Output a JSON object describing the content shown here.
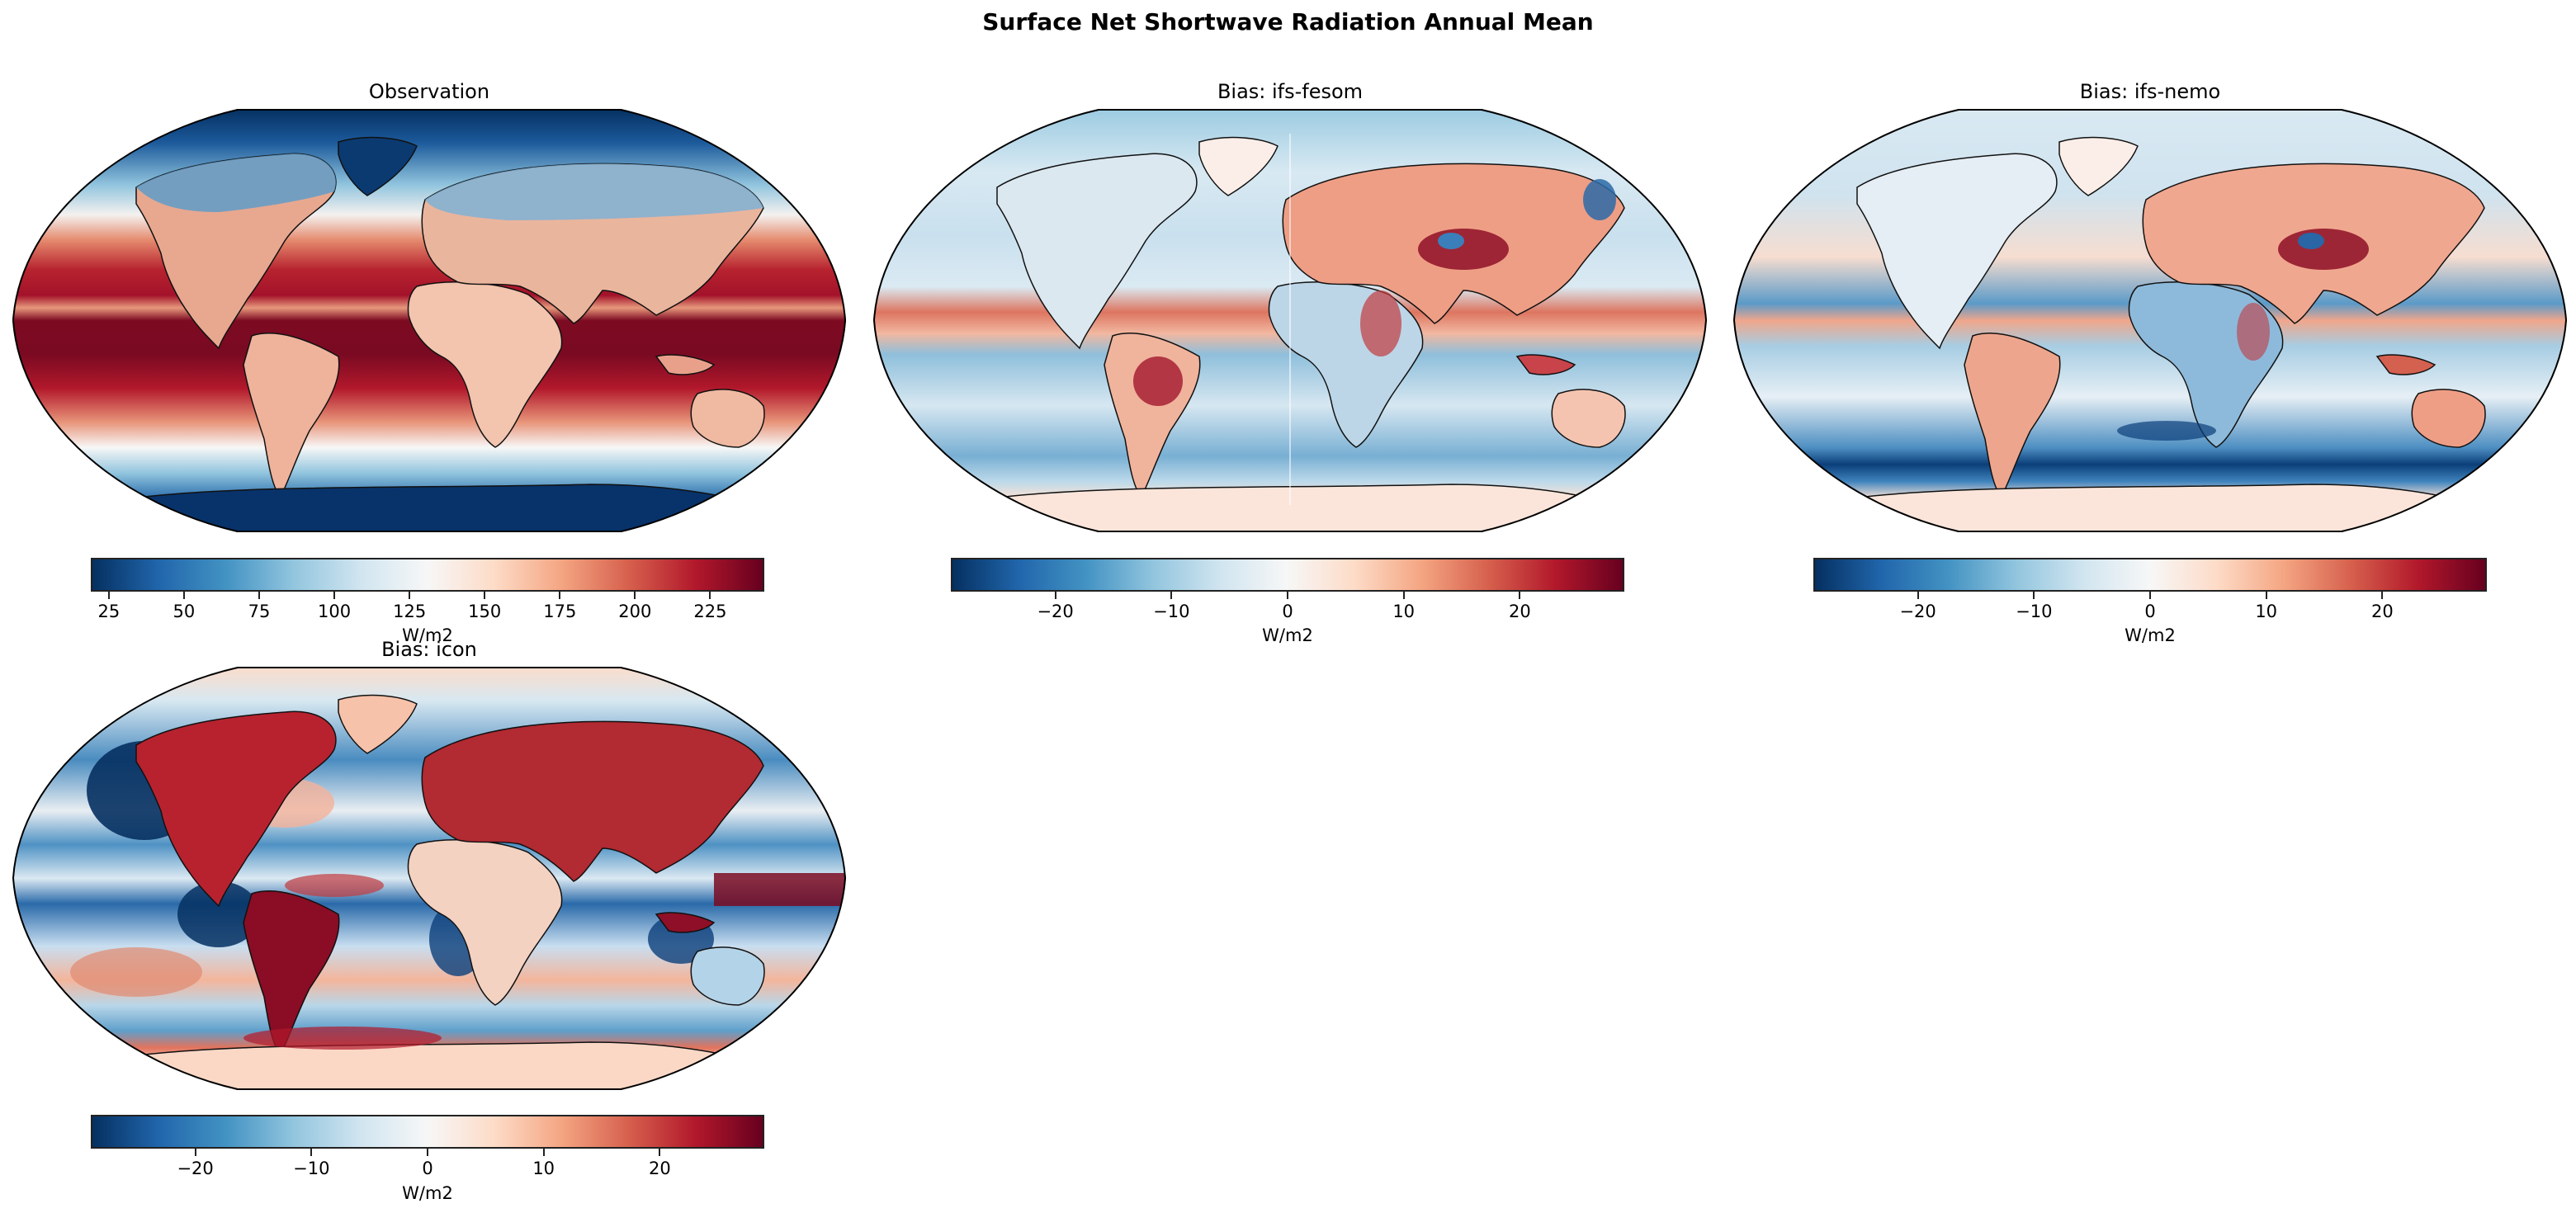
{
  "figure": {
    "title": "Surface Net Shortwave Radiation Annual Mean"
  },
  "colors": {
    "cmap": "RdBu_r",
    "cmap_stops": [
      "#053061",
      "#2166ac",
      "#4393c3",
      "#92c5de",
      "#d1e5f0",
      "#f7f7f7",
      "#fddbc7",
      "#f4a582",
      "#d6604d",
      "#b2182b",
      "#67001f"
    ]
  },
  "panels": [
    {
      "title": "Observation",
      "colorbar": {
        "label": "W/m2",
        "min": 19,
        "max": 243,
        "ticks": [
          25,
          50,
          75,
          100,
          125,
          150,
          175,
          200,
          225
        ],
        "ticklabels": [
          "25",
          "50",
          "75",
          "100",
          "125",
          "150",
          "175",
          "200",
          "225"
        ]
      }
    },
    {
      "title": "Bias: ifs-fesom",
      "colorbar": {
        "label": "W/m2",
        "min": -29,
        "max": 29,
        "ticks": [
          -20,
          -10,
          0,
          10,
          20
        ],
        "ticklabels": [
          "−20",
          "−10",
          "0",
          "10",
          "20"
        ]
      }
    },
    {
      "title": "Bias: ifs-nemo",
      "colorbar": {
        "label": "W/m2",
        "min": -29,
        "max": 29,
        "ticks": [
          -20,
          -10,
          0,
          10,
          20
        ],
        "ticklabels": [
          "−20",
          "−10",
          "0",
          "10",
          "20"
        ]
      }
    },
    {
      "title": "Bias: icon",
      "colorbar": {
        "label": "W/m2",
        "min": -29,
        "max": 29,
        "ticks": [
          -20,
          -10,
          0,
          10,
          20
        ],
        "ticklabels": [
          "−20",
          "−10",
          "0",
          "10",
          "20"
        ]
      }
    }
  ],
  "chart_data": [
    {
      "type": "heatmap",
      "title": "Observation",
      "projection": "Robinson (global map)",
      "colormap": "RdBu_r",
      "colorbar": {
        "label": "W/m2",
        "range": [
          19,
          243
        ],
        "ticks": [
          25,
          50,
          75,
          100,
          125,
          150,
          175,
          200,
          225
        ]
      },
      "description": "Annual mean surface net shortwave radiation; highest (~220-243 W/m2) over tropical oceans, ~150-180 over subtropical land, lowest (~20-50) over polar regions and Antarctica/Greenland."
    },
    {
      "type": "heatmap",
      "title": "Bias: ifs-fesom",
      "projection": "Robinson (global map)",
      "colormap": "RdBu_r",
      "colorbar": {
        "label": "W/m2",
        "range": [
          -29,
          29
        ],
        "ticks": [
          -20,
          -10,
          0,
          10,
          20
        ]
      },
      "description": "Positive bias over Eurasia, Tibetan Plateau, Amazon, equatorial Pacific/Atlantic bands; negative bias over Southern Ocean, subtropical oceans, Sahara. Visible seam at prime meridian."
    },
    {
      "type": "heatmap",
      "title": "Bias: ifs-nemo",
      "projection": "Robinson (global map)",
      "colormap": "RdBu_r",
      "colorbar": {
        "label": "W/m2",
        "range": [
          -29,
          29
        ],
        "ticks": [
          -20,
          -10,
          0,
          10,
          20
        ]
      },
      "description": "Positive bias over Eurasia, Tibet, Australia; strong negative bias over Southern Ocean (~-25), Africa/Sahara slightly negative, equatorial Pacific mixed."
    },
    {
      "type": "heatmap",
      "title": "Bias: icon",
      "projection": "Robinson (global map)",
      "colormap": "RdBu_r",
      "colorbar": {
        "label": "W/m2",
        "range": [
          -29,
          29
        ],
        "ticks": [
          -20,
          -10,
          0,
          10,
          20
        ]
      },
      "description": "Strong positive bias over North America, Eurasia, Amazon, Maritime Continent and West Pacific equatorial band (>25); strong negative over eastern subtropical oceans (stratocumulus regions, < -25); positive around Antarctic coast."
    }
  ]
}
